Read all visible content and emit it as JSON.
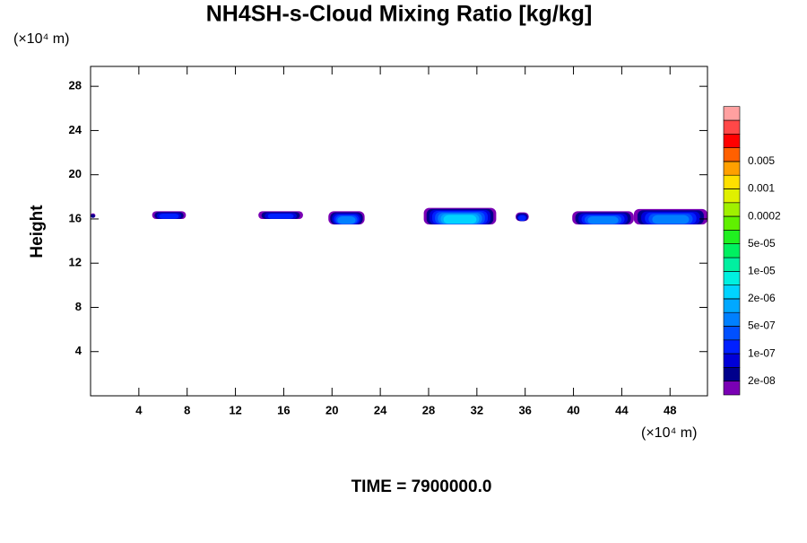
{
  "chart_data": {
    "type": "contour",
    "title": "NH4SH-s-Cloud Mixing Ratio [kg/kg]",
    "y_unit": "(×10⁴ m)",
    "x_unit": "(×10⁴ m)",
    "ylabel": "Height",
    "footer": "TIME = 7900000.0",
    "xlim": [
      0,
      51.1
    ],
    "ylim": [
      0,
      29.8
    ],
    "xticks": [
      4,
      8,
      12,
      16,
      20,
      24,
      28,
      32,
      36,
      40,
      44,
      48
    ],
    "yticks": [
      4,
      8,
      12,
      16,
      20,
      24,
      28
    ],
    "colorbar": {
      "colors": [
        "#7a00b4",
        "#00008c",
        "#0000d8",
        "#0020ff",
        "#0050ff",
        "#0080ff",
        "#00a8ff",
        "#00d4ff",
        "#00f0e0",
        "#00f0a0",
        "#00f060",
        "#20f020",
        "#60f000",
        "#a0f000",
        "#e0f000",
        "#ffe000",
        "#ffa000",
        "#ff6000",
        "#ff0000",
        "#ff4848",
        "#ffa0a0"
      ],
      "levels": [
        {
          "value": 2e-08,
          "label": "2e-08"
        },
        {
          "value": 1e-07,
          "label": "1e-07"
        },
        {
          "value": 5e-07,
          "label": "5e-07"
        },
        {
          "value": 2e-06,
          "label": "2e-06"
        },
        {
          "value": 1e-05,
          "label": "1e-05"
        },
        {
          "value": 5e-05,
          "label": "5e-05"
        },
        0.0002,
        0.001,
        0.005
      ]
    },
    "clouds": [
      {
        "x": [
          0,
          0.4
        ],
        "y": [
          16.1,
          16.5
        ],
        "peak": 2e-08
      },
      {
        "x": [
          5.1,
          7.9
        ],
        "y": [
          16.0,
          16.7
        ],
        "peak": 1e-07
      },
      {
        "x": [
          13.9,
          17.6
        ],
        "y": [
          16.0,
          16.7
        ],
        "peak": 1e-07
      },
      {
        "x": [
          19.7,
          22.7
        ],
        "y": [
          15.5,
          16.7
        ],
        "peak": 5e-07
      },
      {
        "x": [
          27.6,
          33.6
        ],
        "y": [
          15.5,
          17.0
        ],
        "peak": 2e-06
      },
      {
        "x": [
          35.2,
          36.3
        ],
        "y": [
          15.8,
          16.6
        ],
        "peak": 1e-07
      },
      {
        "x": [
          39.9,
          45.0
        ],
        "y": [
          15.5,
          16.7
        ],
        "peak": 5e-07
      },
      {
        "x": [
          45.0,
          51.1
        ],
        "y": [
          15.5,
          16.9
        ],
        "peak": 5e-07
      }
    ]
  }
}
